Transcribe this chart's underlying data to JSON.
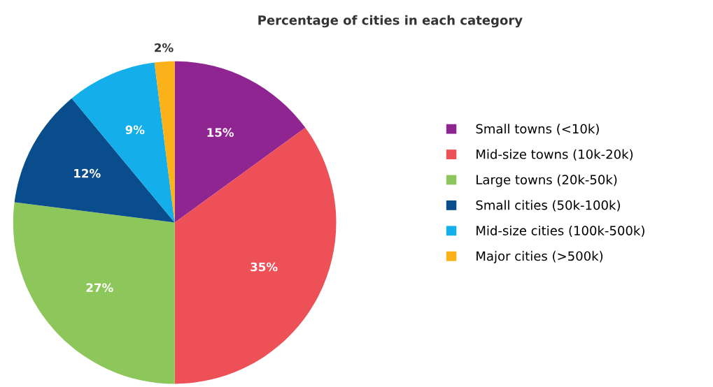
{
  "chart_data": {
    "type": "pie",
    "title": "Percentage of cities in each category",
    "categories": [
      "Small towns (<10k)",
      "Mid-size towns (10k-20k)",
      "Large towns (20k-50k)",
      "Small cities (50k-100k)",
      "Mid-size cities (100k-500k)",
      "Major cities (>500k)"
    ],
    "values": [
      15,
      35,
      27,
      12,
      9,
      2
    ],
    "colors": [
      "#8e2590",
      "#ee5058",
      "#8dc65a",
      "#0a4d8c",
      "#14aeea",
      "#fbb21a"
    ],
    "value_labels": [
      "15%",
      "35%",
      "27%",
      "12%",
      "9%",
      "2%"
    ],
    "legend": "right"
  }
}
